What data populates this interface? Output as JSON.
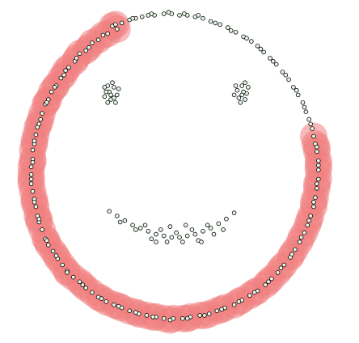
{
  "chart_data": {
    "type": "scatter",
    "title": "",
    "xlabel": "",
    "ylabel": "",
    "xlim": [
      -1.15,
      1.15
    ],
    "ylim": [
      -1.12,
      1.12
    ],
    "grid": false,
    "legend": "none",
    "colors": {
      "background": "#ffffff",
      "cluster_fill": "#f08080",
      "point_fill": "#e8f8e8",
      "point_stroke": "#000000"
    },
    "series": [
      {
        "highlighted": true,
        "points": [
          [
            -0.43,
            0.95
          ],
          [
            -0.4,
            0.93
          ],
          [
            -0.46,
            0.9
          ],
          [
            -0.52,
            0.86
          ],
          [
            -0.56,
            0.84
          ],
          [
            -0.6,
            0.79
          ],
          [
            -0.64,
            0.77
          ],
          [
            -0.67,
            0.72
          ],
          [
            -0.71,
            0.68
          ],
          [
            -0.74,
            0.63
          ],
          [
            -0.76,
            0.61
          ],
          [
            -0.79,
            0.56
          ],
          [
            -0.82,
            0.52
          ],
          [
            -0.84,
            0.47
          ],
          [
            -0.86,
            0.44
          ],
          [
            -0.88,
            0.38
          ],
          [
            -0.89,
            0.34
          ],
          [
            -0.91,
            0.29
          ],
          [
            -0.92,
            0.24
          ],
          [
            -0.93,
            0.18
          ],
          [
            -0.94,
            0.14
          ],
          [
            -0.94,
            0.08
          ],
          [
            -0.95,
            0.03
          ],
          [
            -0.95,
            -0.02
          ],
          [
            -0.95,
            -0.08
          ],
          [
            -0.94,
            -0.13
          ],
          [
            -0.93,
            -0.18
          ],
          [
            -0.92,
            -0.23
          ],
          [
            -0.91,
            -0.29
          ],
          [
            -0.9,
            -0.33
          ],
          [
            -0.88,
            -0.38
          ],
          [
            -0.86,
            -0.44
          ],
          [
            -0.84,
            -0.48
          ],
          [
            -0.81,
            -0.52
          ],
          [
            -0.78,
            -0.57
          ],
          [
            -0.75,
            -0.61
          ],
          [
            -0.72,
            -0.65
          ],
          [
            -0.68,
            -0.69
          ],
          [
            -0.64,
            -0.72
          ],
          [
            -0.6,
            -0.76
          ],
          [
            -0.56,
            -0.79
          ],
          [
            -0.52,
            -0.82
          ],
          [
            -0.47,
            -0.85
          ],
          [
            -0.42,
            -0.87
          ],
          [
            -0.37,
            -0.89
          ],
          [
            -0.32,
            -0.91
          ],
          [
            -0.26,
            -0.93
          ],
          [
            -0.21,
            -0.94
          ],
          [
            -0.15,
            -0.95
          ],
          [
            -0.1,
            -0.96
          ],
          [
            -0.04,
            -0.96
          ],
          [
            0.02,
            -0.96
          ],
          [
            0.07,
            -0.95
          ],
          [
            0.13,
            -0.94
          ],
          [
            0.19,
            -0.93
          ],
          [
            0.24,
            -0.91
          ],
          [
            0.29,
            -0.89
          ],
          [
            0.35,
            -0.87
          ],
          [
            0.4,
            -0.84
          ],
          [
            0.45,
            -0.81
          ],
          [
            0.5,
            -0.78
          ],
          [
            0.55,
            -0.74
          ],
          [
            0.59,
            -0.7
          ],
          [
            0.63,
            -0.66
          ],
          [
            0.67,
            -0.61
          ],
          [
            0.71,
            -0.56
          ],
          [
            0.74,
            -0.51
          ],
          [
            0.77,
            -0.46
          ],
          [
            0.8,
            -0.4
          ],
          [
            0.82,
            -0.35
          ],
          [
            0.84,
            -0.29
          ],
          [
            0.86,
            -0.23
          ],
          [
            0.87,
            -0.17
          ],
          [
            0.88,
            -0.11
          ],
          [
            0.89,
            -0.05
          ],
          [
            0.89,
            0.01
          ],
          [
            0.89,
            0.07
          ],
          [
            0.88,
            0.13
          ],
          [
            0.87,
            0.18
          ],
          [
            0.86,
            0.23
          ],
          [
            -0.41,
            0.96
          ],
          [
            -0.49,
            0.89
          ],
          [
            -0.58,
            0.81
          ],
          [
            -0.66,
            0.74
          ],
          [
            -0.73,
            0.66
          ],
          [
            -0.8,
            0.55
          ],
          [
            -0.85,
            0.45
          ],
          [
            -0.9,
            0.31
          ],
          [
            -0.93,
            0.2
          ],
          [
            -0.94,
            0.06
          ],
          [
            -0.95,
            -0.05
          ],
          [
            -0.93,
            -0.2
          ],
          [
            -0.9,
            -0.31
          ],
          [
            -0.85,
            -0.45
          ],
          [
            -0.79,
            -0.55
          ],
          [
            -0.72,
            -0.66
          ],
          [
            -0.62,
            -0.74
          ],
          [
            -0.5,
            -0.83
          ],
          [
            -0.39,
            -0.88
          ],
          [
            -0.28,
            -0.92
          ],
          [
            -0.17,
            -0.95
          ],
          [
            -0.06,
            -0.97
          ],
          [
            0.05,
            -0.96
          ],
          [
            0.16,
            -0.94
          ],
          [
            0.27,
            -0.9
          ],
          [
            0.38,
            -0.85
          ],
          [
            0.48,
            -0.79
          ],
          [
            0.57,
            -0.72
          ],
          [
            0.65,
            -0.63
          ],
          [
            0.72,
            -0.54
          ],
          [
            0.78,
            -0.43
          ],
          [
            0.83,
            -0.32
          ],
          [
            0.86,
            -0.2
          ],
          [
            0.88,
            -0.08
          ],
          [
            0.89,
            0.04
          ],
          [
            0.88,
            0.16
          ]
        ]
      },
      {
        "highlighted": false,
        "points": [
          [
            -0.37,
            0.97
          ],
          [
            -0.32,
            0.99
          ],
          [
            -0.28,
            1.0
          ],
          [
            -0.24,
            1.01
          ],
          [
            -0.2,
            1.02
          ],
          [
            -0.16,
            1.02
          ],
          [
            -0.1,
            1.03
          ],
          [
            -0.05,
            1.03
          ],
          [
            0.0,
            1.02
          ],
          [
            0.05,
            1.02
          ],
          [
            0.1,
            1.01
          ],
          [
            0.15,
            1.0
          ],
          [
            0.2,
            0.98
          ],
          [
            0.26,
            0.96
          ],
          [
            0.31,
            0.94
          ],
          [
            0.36,
            0.91
          ],
          [
            0.41,
            0.88
          ],
          [
            0.46,
            0.85
          ],
          [
            0.5,
            0.82
          ],
          [
            0.54,
            0.78
          ],
          [
            0.58,
            0.74
          ],
          [
            0.62,
            0.7
          ],
          [
            0.66,
            0.65
          ],
          [
            0.7,
            0.6
          ],
          [
            0.73,
            0.55
          ],
          [
            0.76,
            0.5
          ],
          [
            0.79,
            0.45
          ],
          [
            0.81,
            0.39
          ],
          [
            0.83,
            0.34
          ],
          [
            0.85,
            0.28
          ],
          [
            -0.3,
            1.0
          ],
          [
            -0.18,
            1.03
          ],
          [
            -0.07,
            1.04
          ],
          [
            0.03,
            1.03
          ],
          [
            0.12,
            1.02
          ],
          [
            0.23,
            0.97
          ],
          [
            0.33,
            0.92
          ],
          [
            0.43,
            0.87
          ],
          [
            0.52,
            0.8
          ],
          [
            0.6,
            0.72
          ],
          [
            0.68,
            0.63
          ],
          [
            0.75,
            0.53
          ],
          [
            0.8,
            0.42
          ],
          [
            0.84,
            0.31
          ],
          [
            -0.45,
            0.52
          ],
          [
            -0.42,
            0.55
          ],
          [
            -0.48,
            0.49
          ],
          [
            -0.44,
            0.47
          ],
          [
            -0.4,
            0.5
          ],
          [
            -0.46,
            0.56
          ],
          [
            -0.41,
            0.45
          ],
          [
            -0.47,
            0.52
          ],
          [
            -0.43,
            0.58
          ],
          [
            -0.39,
            0.54
          ],
          [
            -0.44,
            0.5
          ],
          [
            -0.42,
            0.48
          ],
          [
            -0.46,
            0.45
          ],
          [
            -0.48,
            0.55
          ],
          [
            0.37,
            0.53
          ],
          [
            0.4,
            0.56
          ],
          [
            0.43,
            0.51
          ],
          [
            0.38,
            0.48
          ],
          [
            0.42,
            0.47
          ],
          [
            0.36,
            0.56
          ],
          [
            0.41,
            0.52
          ],
          [
            0.44,
            0.55
          ],
          [
            0.39,
            0.45
          ],
          [
            0.35,
            0.5
          ],
          [
            0.42,
            0.58
          ],
          [
            0.4,
            0.5
          ],
          [
            -0.45,
            -0.26
          ],
          [
            -0.4,
            -0.29
          ],
          [
            -0.35,
            -0.32
          ],
          [
            -0.3,
            -0.35
          ],
          [
            -0.25,
            -0.37
          ],
          [
            -0.2,
            -0.39
          ],
          [
            -0.15,
            -0.41
          ],
          [
            -0.1,
            -0.42
          ],
          [
            -0.05,
            -0.43
          ],
          [
            0.0,
            -0.43
          ],
          [
            0.05,
            -0.42
          ],
          [
            0.1,
            -0.41
          ],
          [
            0.15,
            -0.39
          ],
          [
            0.2,
            -0.37
          ],
          [
            0.25,
            -0.34
          ],
          [
            0.3,
            -0.31
          ],
          [
            0.35,
            -0.27
          ],
          [
            -0.38,
            -0.33
          ],
          [
            -0.28,
            -0.38
          ],
          [
            -0.18,
            -0.44
          ],
          [
            -0.08,
            -0.46
          ],
          [
            0.02,
            -0.46
          ],
          [
            0.12,
            -0.45
          ],
          [
            0.22,
            -0.41
          ],
          [
            -0.12,
            -0.38
          ],
          [
            -0.02,
            -0.4
          ],
          [
            0.08,
            -0.38
          ],
          [
            0.18,
            -0.35
          ],
          [
            -0.22,
            -0.35
          ],
          [
            0.28,
            -0.38
          ],
          [
            -0.06,
            -0.36
          ],
          [
            0.04,
            -0.35
          ],
          [
            -0.15,
            -0.46
          ],
          [
            0.14,
            -0.46
          ]
        ]
      }
    ]
  }
}
